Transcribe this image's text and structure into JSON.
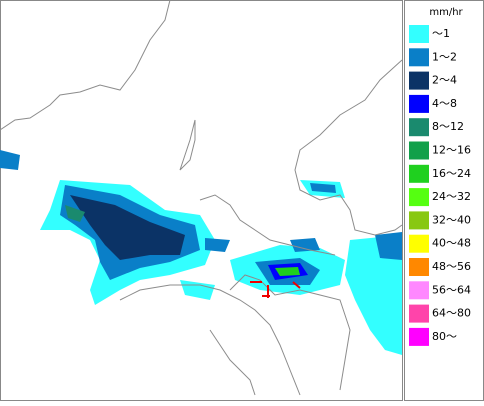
{
  "legend": {
    "title": "mm/hr",
    "items": [
      {
        "label": "～1",
        "color": "#33ffff"
      },
      {
        "label": "1～2",
        "color": "#0a7fc8"
      },
      {
        "label": "2～4",
        "color": "#0b3366"
      },
      {
        "label": "4～8",
        "color": "#0000ff"
      },
      {
        "label": "8～12",
        "color": "#1a8a6e"
      },
      {
        "label": "12～16",
        "color": "#11a04a"
      },
      {
        "label": "16～24",
        "color": "#1fd01f"
      },
      {
        "label": "24～32",
        "color": "#55ff11"
      },
      {
        "label": "32～40",
        "color": "#88c811"
      },
      {
        "label": "40～48",
        "color": "#ffff00"
      },
      {
        "label": "48～56",
        "color": "#ff8800"
      },
      {
        "label": "56～64",
        "color": "#ff88ff"
      },
      {
        "label": "64～80",
        "color": "#ff44aa"
      },
      {
        "label": "80～",
        "color": "#ff00ff"
      }
    ]
  }
}
